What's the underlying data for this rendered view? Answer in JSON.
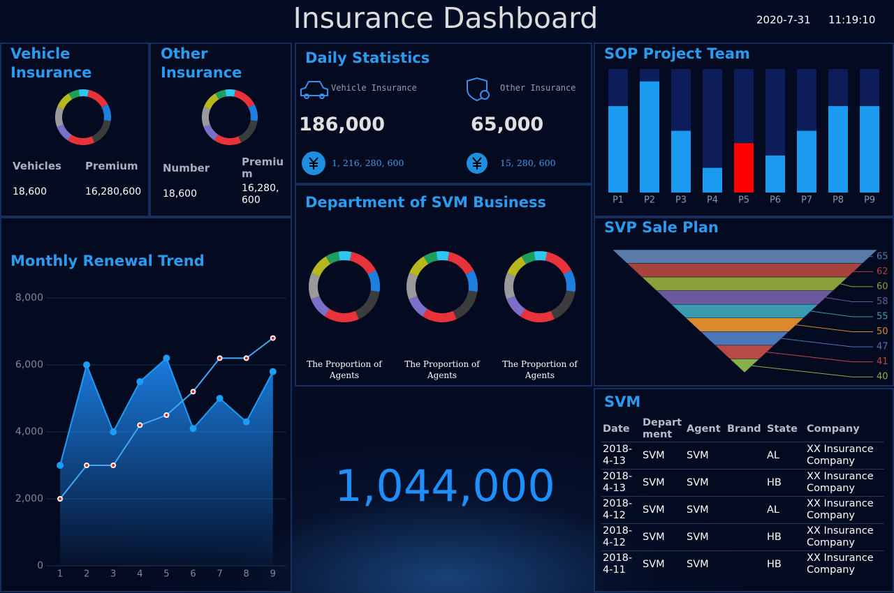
{
  "header": {
    "title": "Insurance Dashboard",
    "date": "2020-7-31",
    "time": "11:19:10"
  },
  "vehicle_insurance": {
    "title": "Vehicle Insurance",
    "headers": [
      "Vehicles",
      "Premium"
    ],
    "values": [
      "18,600",
      "16,280,600"
    ]
  },
  "other_insurance": {
    "title": "Other Insurance",
    "headers": [
      "Number",
      "Premium"
    ],
    "values": [
      "18,600",
      "16,280,600"
    ]
  },
  "daily_statistics": {
    "title": "Daily Statistics",
    "items": [
      {
        "label": "Vehicle Insurance",
        "count": "186,000",
        "amount": "1, 216, 280, 600"
      },
      {
        "label": "Other Insurance",
        "count": "65,000",
        "amount": "15, 280, 600"
      }
    ]
  },
  "department": {
    "title": "Department of SVM Business"
  },
  "total": "1,044,000",
  "svm_table": {
    "title": "SVM",
    "headers": [
      "Date",
      "Department",
      "Agent",
      "Brand",
      "State",
      "Company"
    ],
    "rows": [
      [
        "2018-4-13",
        "SVM",
        "SVM",
        null,
        "AL",
        "XX Insurance Company"
      ],
      [
        "2018-4-13",
        "SVM",
        "SVM",
        null,
        "HB",
        "XX Insurance Company"
      ],
      [
        "2018-4-12",
        "SVM",
        "SVM",
        null,
        "AL",
        "XX Insurance Company"
      ],
      [
        "2018-4-12",
        "SVM",
        "SVM",
        null,
        "HB",
        "XX Insurance Company"
      ],
      [
        "2018-4-11",
        "SVM",
        "SVM",
        null,
        "HB",
        "XX Insurance Company"
      ]
    ]
  },
  "chart_data": [
    {
      "type": "pie",
      "values": [
        6,
        14,
        10,
        16,
        16,
        10,
        12,
        10,
        6
      ],
      "colors": [
        "#2ec7f0",
        "#e8333a",
        "#1e7fe0",
        "#3c3c3c",
        "#e8333a",
        "#7b6fc8",
        "#9a9a9a",
        "#b8b81e",
        "#1e9e5a"
      ]
    },
    {
      "type": "pie",
      "values": [
        6,
        14,
        10,
        16,
        16,
        10,
        12,
        10,
        6
      ],
      "colors": [
        "#2ec7f0",
        "#e8333a",
        "#1e7fe0",
        "#3c3c3c",
        "#e8333a",
        "#7b6fc8",
        "#9a9a9a",
        "#b8b81e",
        "#1e9e5a"
      ]
    },
    {
      "type": "pie",
      "title": "The Proportion of Agents",
      "values": [
        6,
        14,
        10,
        16,
        16,
        10,
        12,
        10,
        6
      ],
      "colors": [
        "#2ec7f0",
        "#e8333a",
        "#1e7fe0",
        "#3c3c3c",
        "#e8333a",
        "#7b6fc8",
        "#9a9a9a",
        "#b8b81e",
        "#1e9e5a"
      ]
    },
    {
      "type": "pie",
      "title": "The Proportion of Agents",
      "values": [
        6,
        14,
        10,
        16,
        16,
        10,
        12,
        10,
        6
      ],
      "colors": [
        "#2ec7f0",
        "#e8333a",
        "#1e7fe0",
        "#3c3c3c",
        "#e8333a",
        "#7b6fc8",
        "#9a9a9a",
        "#b8b81e",
        "#1e9e5a"
      ]
    },
    {
      "type": "pie",
      "title": "The Proportion of Agents",
      "values": [
        6,
        14,
        10,
        16,
        16,
        10,
        12,
        10,
        6
      ],
      "colors": [
        "#2ec7f0",
        "#e8333a",
        "#1e7fe0",
        "#3c3c3c",
        "#e8333a",
        "#7b6fc8",
        "#9a9a9a",
        "#b8b81e",
        "#1e9e5a"
      ]
    },
    {
      "type": "bar",
      "title": "SOP Project Team",
      "categories": [
        "P1",
        "P2",
        "P3",
        "P4",
        "P5",
        "P6",
        "P7",
        "P8",
        "P9"
      ],
      "values": [
        70,
        90,
        50,
        20,
        40,
        30,
        50,
        70,
        70
      ],
      "colors": [
        "#1a9bf0",
        "#1a9bf0",
        "#1a9bf0",
        "#1a9bf0",
        "#ff0000",
        "#1a9bf0",
        "#1a9bf0",
        "#1a9bf0",
        "#1a9bf0"
      ],
      "ylim": [
        0,
        100
      ]
    },
    {
      "type": "funnel",
      "title": "SVP Sale Plan",
      "values": [
        65,
        62,
        60,
        58,
        55,
        50,
        47,
        41,
        40
      ],
      "colors": [
        "#5a7ba8",
        "#a8423d",
        "#8aa03a",
        "#6c58a0",
        "#3a9ab0",
        "#d98a2e",
        "#4a78b8",
        "#b84a46",
        "#86b04a"
      ]
    },
    {
      "type": "line",
      "title": "Monthly Renewal Trend",
      "categories": [
        "1",
        "2",
        "3",
        "4",
        "5",
        "6",
        "7",
        "8",
        "9"
      ],
      "series": [
        {
          "color": "#1e9df5",
          "area": true,
          "values": [
            3000,
            6000,
            4000,
            5500,
            6200,
            4100,
            5000,
            4300,
            5800
          ]
        },
        {
          "color": "#3fa9f5",
          "area": false,
          "values": [
            2000,
            3000,
            3000,
            4200,
            4500,
            5200,
            6200,
            6200,
            6800
          ]
        }
      ],
      "ylim": [
        0,
        8000
      ],
      "yticks": [
        0,
        {
          "value": 2000,
          "label": "2,000"
        },
        {
          "value": 4000,
          "label": "4,000"
        },
        {
          "value": 6000,
          "label": "6,000"
        },
        {
          "value": 8000,
          "label": "8,000"
        }
      ],
      "grid": true
    }
  ]
}
